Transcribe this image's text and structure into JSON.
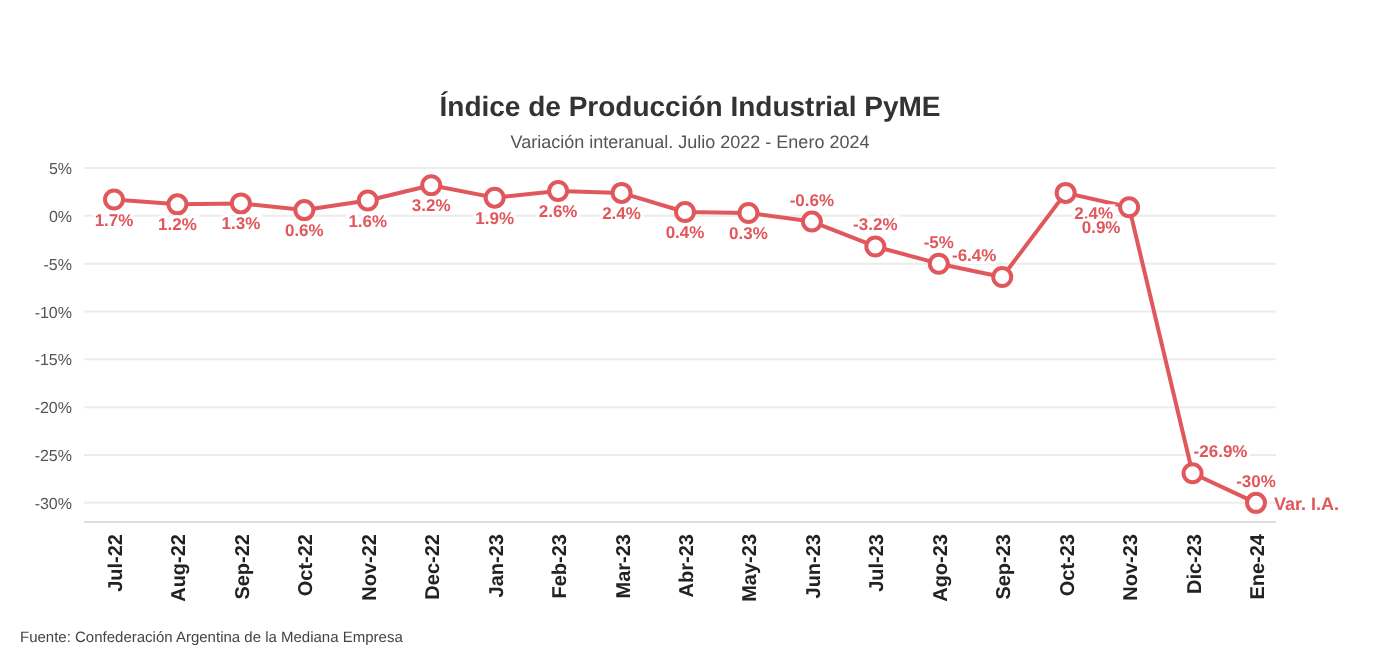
{
  "chart_data": {
    "type": "line",
    "title": "Índice de Producción Industrial PyME",
    "subtitle": "Variación interanual. Julio 2022 - Enero 2024",
    "categories": [
      "Jul-22",
      "Aug-22",
      "Sep-22",
      "Oct-22",
      "Nov-22",
      "Dec-22",
      "Jan-23",
      "Feb-23",
      "Mar-23",
      "Abr-23",
      "May-23",
      "Jun-23",
      "Jul-23",
      "Ago-23",
      "Sep-23",
      "Oct-23",
      "Nov-23",
      "Dic-23",
      "Ene-24"
    ],
    "series": [
      {
        "name": "Var. I.A.",
        "color": "#e0575c",
        "values": [
          1.7,
          1.2,
          1.3,
          0.6,
          1.6,
          3.2,
          1.9,
          2.6,
          2.4,
          0.4,
          0.3,
          -0.6,
          -3.2,
          -5,
          -6.4,
          2.4,
          0.9,
          -26.9,
          -30
        ],
        "value_labels": [
          "1.7%",
          "1.2%",
          "1.3%",
          "0.6%",
          "1.6%",
          "3.2%",
          "1.9%",
          "2.6%",
          "2.4%",
          "0.4%",
          "0.3%",
          "-0.6%",
          "-3.2%",
          "-5%",
          "-6.4%",
          "2.4%",
          "0.9%",
          "-26.9%",
          "-30%"
        ]
      }
    ],
    "ylim": [
      -32,
      5
    ],
    "yticks": [
      {
        "value": 5,
        "label": "5%"
      },
      {
        "value": 0,
        "label": "0%"
      },
      {
        "value": -5,
        "label": "-5%"
      },
      {
        "value": -10,
        "label": "-10%"
      },
      {
        "value": -15,
        "label": "-15%"
      },
      {
        "value": -20,
        "label": "-20%"
      },
      {
        "value": -25,
        "label": "-25%"
      },
      {
        "value": -30,
        "label": "-30%"
      }
    ],
    "grid": "y",
    "marker": "circle",
    "line_style": "solid",
    "annotations": [
      "Fuente: Confederación Argentina de la Mediana Empresa"
    ]
  }
}
